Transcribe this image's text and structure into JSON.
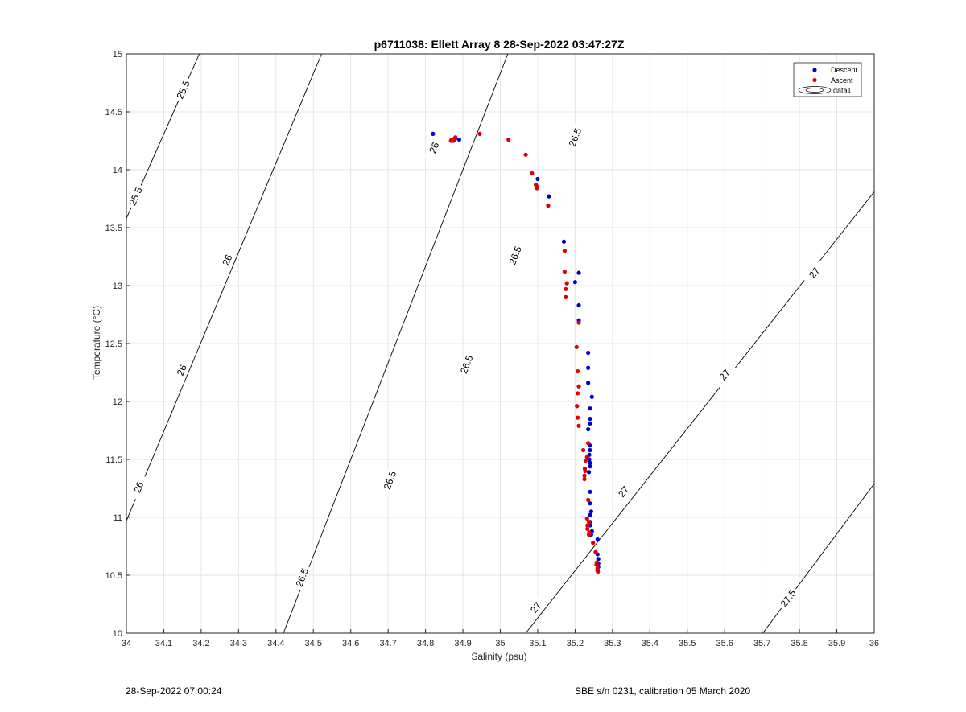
{
  "chart_data": {
    "type": "scatter",
    "title": "p6711038: Ellett Array 8 28-Sep-2022 03:47:27Z",
    "xlabel": "Salinity (psu)",
    "ylabel": "Temperature (°C)",
    "xlim": [
      34,
      36
    ],
    "ylim": [
      10,
      15
    ],
    "x_ticks": [
      "34",
      "34.1",
      "34.2",
      "34.3",
      "34.4",
      "34.5",
      "34.6",
      "34.7",
      "34.8",
      "34.9",
      "35",
      "35.1",
      "35.2",
      "35.3",
      "35.4",
      "35.5",
      "35.6",
      "35.7",
      "35.8",
      "35.9",
      "36"
    ],
    "y_ticks": [
      "10",
      "10.5",
      "11",
      "11.5",
      "12",
      "12.5",
      "13",
      "13.5",
      "14",
      "14.5",
      "15"
    ],
    "grid": true,
    "legend_position": "top-right",
    "legend": [
      "Descent",
      "Ascent",
      "data1"
    ],
    "series": [
      {
        "name": "Descent",
        "color": "#0000c8",
        "points": [
          [
            34.82,
            14.31
          ],
          [
            34.88,
            14.27
          ],
          [
            34.89,
            14.26
          ],
          [
            35.1,
            13.92
          ],
          [
            35.13,
            13.77
          ],
          [
            35.17,
            13.38
          ],
          [
            35.21,
            13.11
          ],
          [
            35.2,
            13.03
          ],
          [
            35.21,
            12.83
          ],
          [
            35.21,
            12.7
          ],
          [
            35.235,
            12.42
          ],
          [
            35.235,
            12.29
          ],
          [
            35.235,
            12.16
          ],
          [
            35.245,
            12.04
          ],
          [
            35.24,
            11.94
          ],
          [
            35.24,
            11.85
          ],
          [
            35.24,
            11.81
          ],
          [
            35.235,
            11.76
          ],
          [
            35.24,
            11.62
          ],
          [
            35.24,
            11.58
          ],
          [
            35.238,
            11.54
          ],
          [
            35.238,
            11.5
          ],
          [
            35.24,
            11.47
          ],
          [
            35.24,
            11.44
          ],
          [
            35.237,
            11.39
          ],
          [
            35.24,
            11.22
          ],
          [
            35.24,
            11.12
          ],
          [
            35.243,
            11.05
          ],
          [
            35.24,
            11.02
          ],
          [
            35.24,
            10.96
          ],
          [
            35.24,
            10.93
          ],
          [
            35.245,
            10.88
          ],
          [
            35.243,
            10.85
          ],
          [
            35.26,
            10.81
          ],
          [
            35.26,
            10.68
          ],
          [
            35.262,
            10.64
          ],
          [
            35.262,
            10.6
          ],
          [
            35.262,
            10.57
          ],
          [
            35.26,
            10.54
          ]
        ]
      },
      {
        "name": "Ascent",
        "color": "#dc0000",
        "points": [
          [
            34.868,
            14.25
          ],
          [
            34.872,
            14.26
          ],
          [
            34.875,
            14.25
          ],
          [
            34.878,
            14.27
          ],
          [
            34.88,
            14.28
          ],
          [
            34.87,
            14.26
          ],
          [
            34.945,
            14.31
          ],
          [
            35.022,
            14.26
          ],
          [
            35.068,
            14.13
          ],
          [
            35.085,
            13.97
          ],
          [
            35.095,
            13.87
          ],
          [
            35.098,
            13.84
          ],
          [
            35.097,
            13.86
          ],
          [
            35.128,
            13.69
          ],
          [
            35.172,
            13.3
          ],
          [
            35.172,
            13.12
          ],
          [
            35.178,
            13.02
          ],
          [
            35.175,
            12.97
          ],
          [
            35.175,
            12.9
          ],
          [
            35.21,
            12.68
          ],
          [
            35.204,
            12.47
          ],
          [
            35.207,
            12.26
          ],
          [
            35.21,
            12.13
          ],
          [
            35.207,
            12.07
          ],
          [
            35.205,
            11.96
          ],
          [
            35.207,
            11.86
          ],
          [
            35.21,
            11.79
          ],
          [
            35.222,
            11.58
          ],
          [
            35.235,
            11.64
          ],
          [
            35.232,
            11.52
          ],
          [
            35.228,
            11.49
          ],
          [
            35.226,
            11.42
          ],
          [
            35.227,
            11.4
          ],
          [
            35.225,
            11.36
          ],
          [
            35.225,
            11.33
          ],
          [
            35.235,
            11.15
          ],
          [
            35.232,
            10.99
          ],
          [
            35.237,
            10.96
          ],
          [
            35.233,
            10.93
          ],
          [
            35.233,
            10.9
          ],
          [
            35.238,
            10.87
          ],
          [
            35.237,
            10.85
          ],
          [
            35.248,
            10.78
          ],
          [
            35.255,
            10.7
          ],
          [
            35.258,
            10.61
          ],
          [
            35.257,
            10.59
          ],
          [
            35.26,
            10.56
          ],
          [
            35.26,
            10.55
          ],
          [
            35.261,
            10.53
          ]
        ]
      },
      {
        "name": "data1",
        "type": "contour",
        "color": "#000000",
        "lines": [
          {
            "level": "25.5",
            "p1": [
              34,
              13.58
            ],
            "p2": [
              34.195,
              15
            ]
          },
          {
            "level": "26",
            "p1": [
              34,
              10.97
            ],
            "p2": [
              34.522,
              15
            ]
          },
          {
            "level": "26.5",
            "p1": [
              34.42,
              10
            ],
            "p2": [
              35.02,
              15
            ]
          },
          {
            "level": "27",
            "p1": [
              35.068,
              10
            ],
            "p2": [
              36,
              13.81
            ]
          },
          {
            "level": "27.5",
            "p1": [
              35.702,
              10
            ],
            "p2": [
              36,
              11.29
            ]
          }
        ],
        "labels": [
          {
            "text": "25.5",
            "at": [
              34.152,
              14.69
            ]
          },
          {
            "text": "25.5",
            "at": [
              34.025,
              13.77
            ]
          },
          {
            "text": "26",
            "at": [
              34.823,
              14.19
            ]
          },
          {
            "text": "26",
            "at": [
              34.27,
              13.22
            ]
          },
          {
            "text": "26",
            "at": [
              34.148,
              12.27
            ]
          },
          {
            "text": "26",
            "at": [
              34.033,
              11.26
            ]
          },
          {
            "text": "26.5",
            "at": [
              35.2,
              14.28
            ]
          },
          {
            "text": "26.5",
            "at": [
              35.04,
              13.26
            ]
          },
          {
            "text": "26.5",
            "at": [
              34.91,
              12.32
            ]
          },
          {
            "text": "26.5",
            "at": [
              34.705,
              11.32
            ]
          },
          {
            "text": "26.5",
            "at": [
              34.47,
              10.48
            ]
          },
          {
            "text": "27",
            "at": [
              35.84,
              13.11
            ]
          },
          {
            "text": "27",
            "at": [
              35.6,
              12.23
            ]
          },
          {
            "text": "27",
            "at": [
              35.33,
              11.22
            ]
          },
          {
            "text": "27",
            "at": [
              35.095,
              10.22
            ]
          },
          {
            "text": "27.5",
            "at": [
              35.77,
              10.3
            ]
          }
        ]
      }
    ]
  },
  "footer": {
    "left": "28-Sep-2022 07:00:24",
    "right": "SBE s/n 0231, calibration 05 March 2020"
  }
}
